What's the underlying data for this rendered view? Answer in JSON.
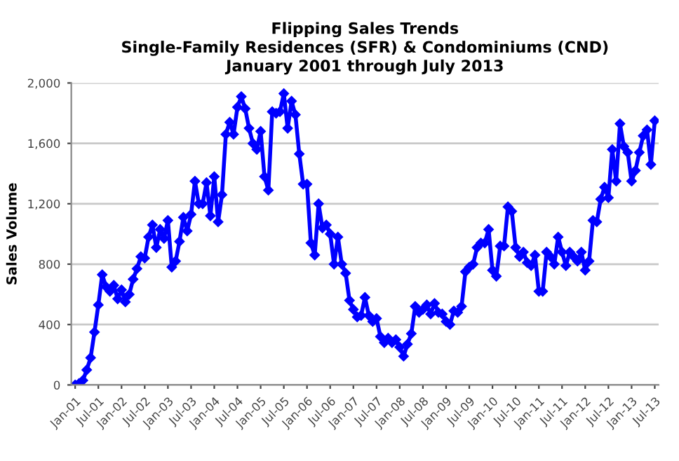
{
  "chart_data": {
    "type": "line",
    "title": "Flipping Sales Trends\nSingle-Family Residences (SFR) & Condominiums (CND)\nJanuary 2001 through July 2013",
    "ylabel": "Sales Volume",
    "categories": [
      "Jan-01",
      null,
      null,
      null,
      null,
      null,
      "Jul-01",
      null,
      null,
      null,
      null,
      null,
      "Jan-02",
      null,
      null,
      null,
      null,
      null,
      "Jul-02",
      null,
      null,
      null,
      null,
      null,
      "Jan-03",
      null,
      null,
      null,
      null,
      null,
      "Jul-03",
      null,
      null,
      null,
      null,
      null,
      "Jan-04",
      null,
      null,
      null,
      null,
      null,
      "Jul-04",
      null,
      null,
      null,
      null,
      null,
      "Jan-05",
      null,
      null,
      null,
      null,
      null,
      "Jul-05",
      null,
      null,
      null,
      null,
      null,
      "Jan-06",
      null,
      null,
      null,
      null,
      null,
      "Jul-06",
      null,
      null,
      null,
      null,
      null,
      "Jan-07",
      null,
      null,
      null,
      null,
      null,
      "Jul-07",
      null,
      null,
      null,
      null,
      null,
      "Jan-08",
      null,
      null,
      null,
      null,
      null,
      "Jul-08",
      null,
      null,
      null,
      null,
      null,
      "Jan-09",
      null,
      null,
      null,
      null,
      null,
      "Jul-09",
      null,
      null,
      null,
      null,
      null,
      "Jan-10",
      null,
      null,
      null,
      null,
      null,
      "Jul-10",
      null,
      null,
      null,
      null,
      null,
      "Jan-11",
      null,
      null,
      null,
      null,
      null,
      "Jul-11",
      null,
      null,
      null,
      null,
      null,
      "Jan-12",
      null,
      null,
      null,
      null,
      null,
      "Jul-12",
      null,
      null,
      null,
      null,
      null,
      "Jan-13",
      null,
      null,
      null,
      null,
      null,
      "Jul-13"
    ],
    "series": [
      {
        "color": "#0000ff",
        "values": [
          0,
          10,
          30,
          100,
          180,
          350,
          530,
          730,
          650,
          620,
          660,
          570,
          630,
          550,
          600,
          700,
          770,
          850,
          840,
          980,
          1060,
          910,
          1030,
          970,
          1090,
          780,
          820,
          950,
          1110,
          1020,
          1130,
          1350,
          1200,
          1200,
          1340,
          1120,
          1380,
          1080,
          1260,
          1660,
          1740,
          1660,
          1840,
          1910,
          1830,
          1700,
          1600,
          1560,
          1680,
          1380,
          1290,
          1810,
          1800,
          1810,
          1930,
          1700,
          1880,
          1790,
          1530,
          1330,
          1330,
          940,
          860,
          1200,
          1040,
          1060,
          1000,
          800,
          980,
          800,
          740,
          560,
          500,
          450,
          460,
          580,
          460,
          420,
          440,
          320,
          280,
          310,
          280,
          300,
          250,
          190,
          270,
          340,
          520,
          480,
          500,
          530,
          470,
          540,
          480,
          470,
          420,
          400,
          490,
          480,
          520,
          750,
          780,
          800,
          910,
          940,
          940,
          1030,
          760,
          720,
          920,
          920,
          1180,
          1150,
          910,
          850,
          880,
          810,
          790,
          860,
          620,
          620,
          880,
          850,
          800,
          980,
          880,
          790,
          880,
          850,
          820,
          880,
          760,
          820,
          1090,
          1080,
          1230,
          1310,
          1240,
          1560,
          1350,
          1730,
          1580,
          1540,
          1350,
          1420,
          1540,
          1650,
          1690,
          1460,
          1750
        ]
      }
    ],
    "ylim": [
      0,
      2000
    ],
    "yticks": [
      {
        "value": 0,
        "label": "0"
      },
      {
        "value": 400,
        "label": "400"
      },
      {
        "value": 800,
        "label": "800"
      },
      {
        "value": 1200,
        "label": "1,200"
      },
      {
        "value": 1600,
        "label": "1,600"
      },
      {
        "value": 2000,
        "label": "2,000"
      }
    ],
    "grid": "y",
    "marker": "diamond",
    "line_style": "solid",
    "legend": false
  }
}
